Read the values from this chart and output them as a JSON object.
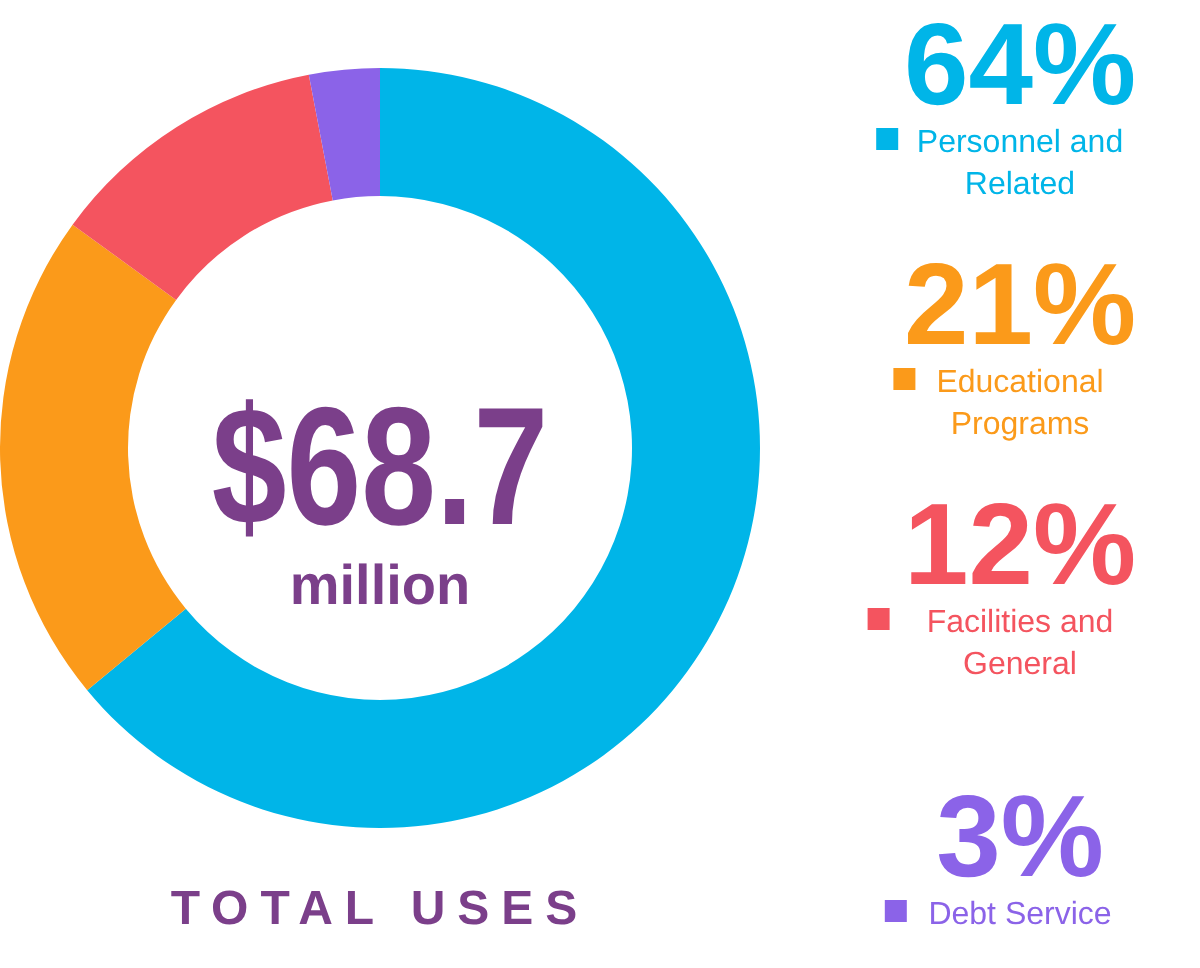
{
  "chart_data": {
    "type": "donut",
    "categories": [
      "Personnel and Related",
      "Educational Programs",
      "Facilities and General",
      "Debt Service"
    ],
    "values": [
      64,
      21,
      12,
      3
    ],
    "value_labels": [
      "64%",
      "21%",
      "12%",
      "3%"
    ],
    "colors": [
      "#00b5e8",
      "#fb9a1a",
      "#f4545f",
      "#8b63e8"
    ],
    "legend": "right",
    "annotations": [
      "$68.7",
      "million",
      "TOTAL USES"
    ]
  }
}
